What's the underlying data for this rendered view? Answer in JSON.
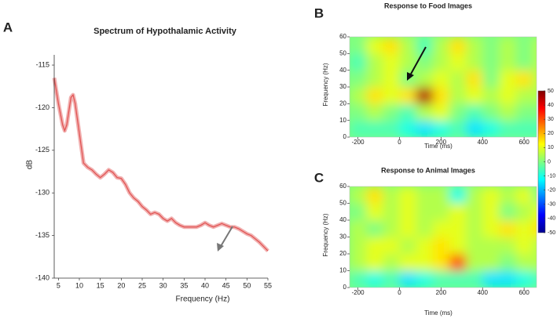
{
  "chart_data": [
    {
      "type": "line",
      "panel_label": "A",
      "title": "Spectrum of Hypothalamic Activity",
      "x_label": "Frequency (Hz)",
      "y_label": "dB",
      "color": "#e0504f",
      "x": [
        4,
        5,
        6,
        6.5,
        7,
        8,
        8.5,
        9,
        10,
        11,
        12,
        13,
        14,
        15,
        16,
        17,
        18,
        19,
        20,
        21,
        22,
        23,
        24,
        25,
        26,
        27,
        28,
        29,
        30,
        31,
        32,
        33,
        34,
        35,
        36,
        37,
        38,
        39,
        40,
        41,
        42,
        43,
        44,
        45,
        46,
        47,
        48,
        49,
        50,
        51,
        52,
        53,
        54,
        55
      ],
      "values": [
        -116.5,
        -119.5,
        -122,
        -122.7,
        -122,
        -118.8,
        -118.5,
        -119.5,
        -123,
        -126.5,
        -127,
        -127.3,
        -127.8,
        -128.2,
        -127.8,
        -127.3,
        -127.6,
        -128.2,
        -128.3,
        -129,
        -130,
        -130.6,
        -131,
        -131.6,
        -132,
        -132.5,
        -132.3,
        -132.5,
        -133,
        -133.3,
        -133,
        -133.5,
        -133.8,
        -134,
        -134,
        -134,
        -134,
        -133.8,
        -133.5,
        -133.8,
        -134,
        -133.8,
        -133.6,
        -133.8,
        -134,
        -134,
        -134.2,
        -134.5,
        -134.8,
        -135,
        -135.4,
        -135.8,
        -136.3,
        -136.8
      ],
      "xlim": [
        4,
        55
      ],
      "ylim": [
        -140,
        -113.8
      ],
      "xticks": [
        5,
        10,
        15,
        20,
        25,
        30,
        35,
        40,
        45,
        50,
        55
      ],
      "yticks": [
        -140,
        -135,
        -130,
        -125,
        -120,
        -115
      ]
    },
    {
      "type": "heatmap",
      "panel_label": "B",
      "title": "Response to Food Images",
      "x_label": "Time (ms)",
      "y_label": "Frequency (Hz)",
      "x": [
        -200,
        -120,
        -40,
        40,
        120,
        200,
        280,
        360,
        440,
        520,
        600,
        680
      ],
      "y": [
        5,
        15,
        25,
        35,
        45,
        55
      ],
      "z": [
        [
          -5,
          -5,
          -5,
          -10,
          -15,
          -10,
          -5,
          -15,
          -10,
          -5,
          -5,
          -5
        ],
        [
          0,
          5,
          0,
          -5,
          5,
          10,
          0,
          -5,
          0,
          5,
          0,
          0
        ],
        [
          5,
          15,
          10,
          15,
          45,
          15,
          5,
          10,
          5,
          10,
          5,
          5
        ],
        [
          0,
          5,
          10,
          0,
          5,
          10,
          5,
          15,
          0,
          10,
          15,
          5
        ],
        [
          -5,
          5,
          10,
          5,
          0,
          5,
          10,
          5,
          0,
          5,
          0,
          5
        ],
        [
          0,
          10,
          15,
          5,
          -5,
          5,
          15,
          5,
          0,
          5,
          0,
          5
        ]
      ],
      "xlim": [
        -240,
        660
      ],
      "ylim": [
        0,
        60
      ],
      "xticks": [
        -200,
        0,
        200,
        400,
        600
      ],
      "yticks": [
        0,
        10,
        20,
        30,
        40,
        50,
        60
      ],
      "zlim": [
        -50,
        50
      ],
      "zticks": [
        -50,
        -40,
        -30,
        -20,
        -10,
        0,
        10,
        20,
        30,
        40,
        50
      ]
    },
    {
      "type": "heatmap",
      "panel_label": "C",
      "title": "Response to Animal Images",
      "x_label": "Time (ms)",
      "y_label": "Frequency (Hz)",
      "x": [
        -200,
        -120,
        -40,
        40,
        120,
        200,
        280,
        360,
        440,
        520,
        600,
        680
      ],
      "y": [
        5,
        15,
        25,
        35,
        45,
        55
      ],
      "z": [
        [
          -5,
          -10,
          -5,
          -15,
          -10,
          -5,
          -5,
          -5,
          -15,
          -15,
          -10,
          -5
        ],
        [
          5,
          10,
          5,
          10,
          10,
          15,
          30,
          5,
          5,
          0,
          5,
          5
        ],
        [
          5,
          10,
          10,
          5,
          10,
          15,
          10,
          5,
          5,
          5,
          10,
          5
        ],
        [
          5,
          0,
          5,
          10,
          5,
          10,
          10,
          5,
          10,
          15,
          10,
          15
        ],
        [
          0,
          10,
          5,
          10,
          5,
          5,
          10,
          5,
          10,
          0,
          5,
          10
        ],
        [
          5,
          15,
          5,
          10,
          5,
          5,
          -10,
          5,
          10,
          5,
          10,
          0
        ]
      ],
      "xlim": [
        -240,
        660
      ],
      "ylim": [
        0,
        60
      ],
      "xticks": [
        -200,
        0,
        200,
        400,
        600
      ],
      "yticks": [
        0,
        10,
        20,
        30,
        40,
        50,
        60
      ],
      "zlim": [
        -50,
        50
      ]
    }
  ]
}
